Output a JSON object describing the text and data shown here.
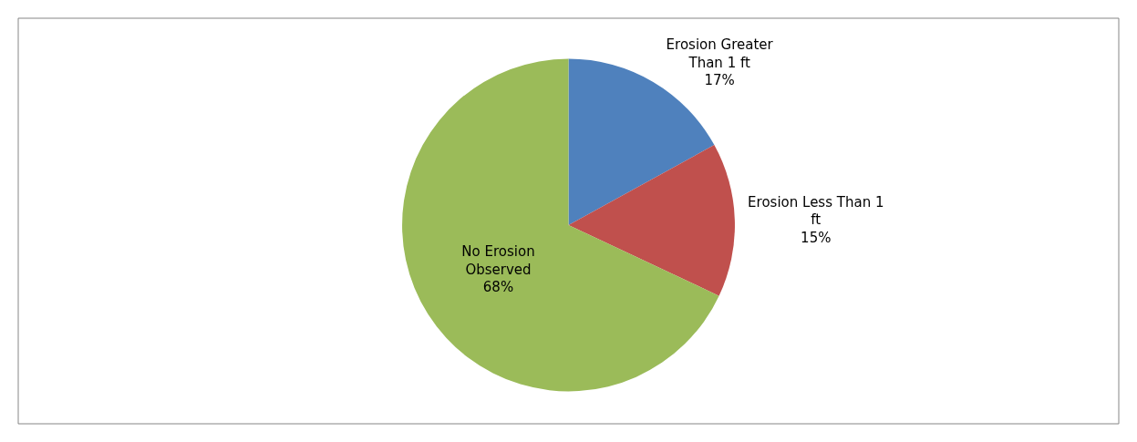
{
  "chart_data": {
    "type": "pie",
    "categories": [
      "Erosion Greater Than 1 ft",
      "Erosion Less Than 1 ft",
      "No Erosion Observed"
    ],
    "values": [
      17,
      15,
      68
    ],
    "colors": [
      "#4f81bd",
      "#c0504d",
      "#9bbb59"
    ],
    "value_labels": [
      "17%",
      "15%",
      "68%"
    ],
    "legend": false
  }
}
